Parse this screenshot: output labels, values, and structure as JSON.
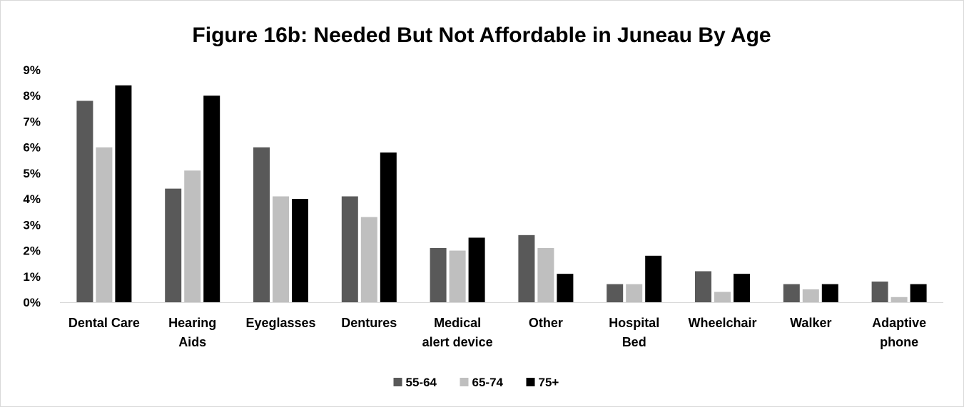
{
  "chart_data": {
    "type": "bar",
    "title": "Figure 16b: Needed But Not Affordable in Juneau By Age",
    "xlabel": "",
    "ylabel": "",
    "ylim": [
      0,
      9
    ],
    "y_ticks": [
      "0%",
      "1%",
      "2%",
      "3%",
      "4%",
      "5%",
      "6%",
      "7%",
      "8%",
      "9%"
    ],
    "grid": false,
    "legend_position": "bottom",
    "categories": [
      [
        "Dental Care"
      ],
      [
        "Hearing",
        "Aids"
      ],
      [
        "Eyeglasses"
      ],
      [
        "Dentures"
      ],
      [
        "Medical",
        "alert device"
      ],
      [
        "Other"
      ],
      [
        "Hospital",
        "Bed"
      ],
      [
        "Wheelchair"
      ],
      [
        "Walker"
      ],
      [
        "Adaptive",
        "phone"
      ]
    ],
    "series": [
      {
        "name": "55-64",
        "color": "#595959",
        "values": [
          7.8,
          4.4,
          6.0,
          4.1,
          2.1,
          2.6,
          0.7,
          1.2,
          0.7,
          0.8
        ]
      },
      {
        "name": "65-74",
        "color": "#bfbfbf",
        "values": [
          6.0,
          5.1,
          4.1,
          3.3,
          2.0,
          2.1,
          0.7,
          0.4,
          0.5,
          0.2
        ]
      },
      {
        "name": "75+",
        "color": "#000000",
        "values": [
          8.4,
          8.0,
          4.0,
          5.8,
          2.5,
          1.1,
          1.8,
          1.1,
          0.7,
          0.7
        ]
      }
    ]
  }
}
